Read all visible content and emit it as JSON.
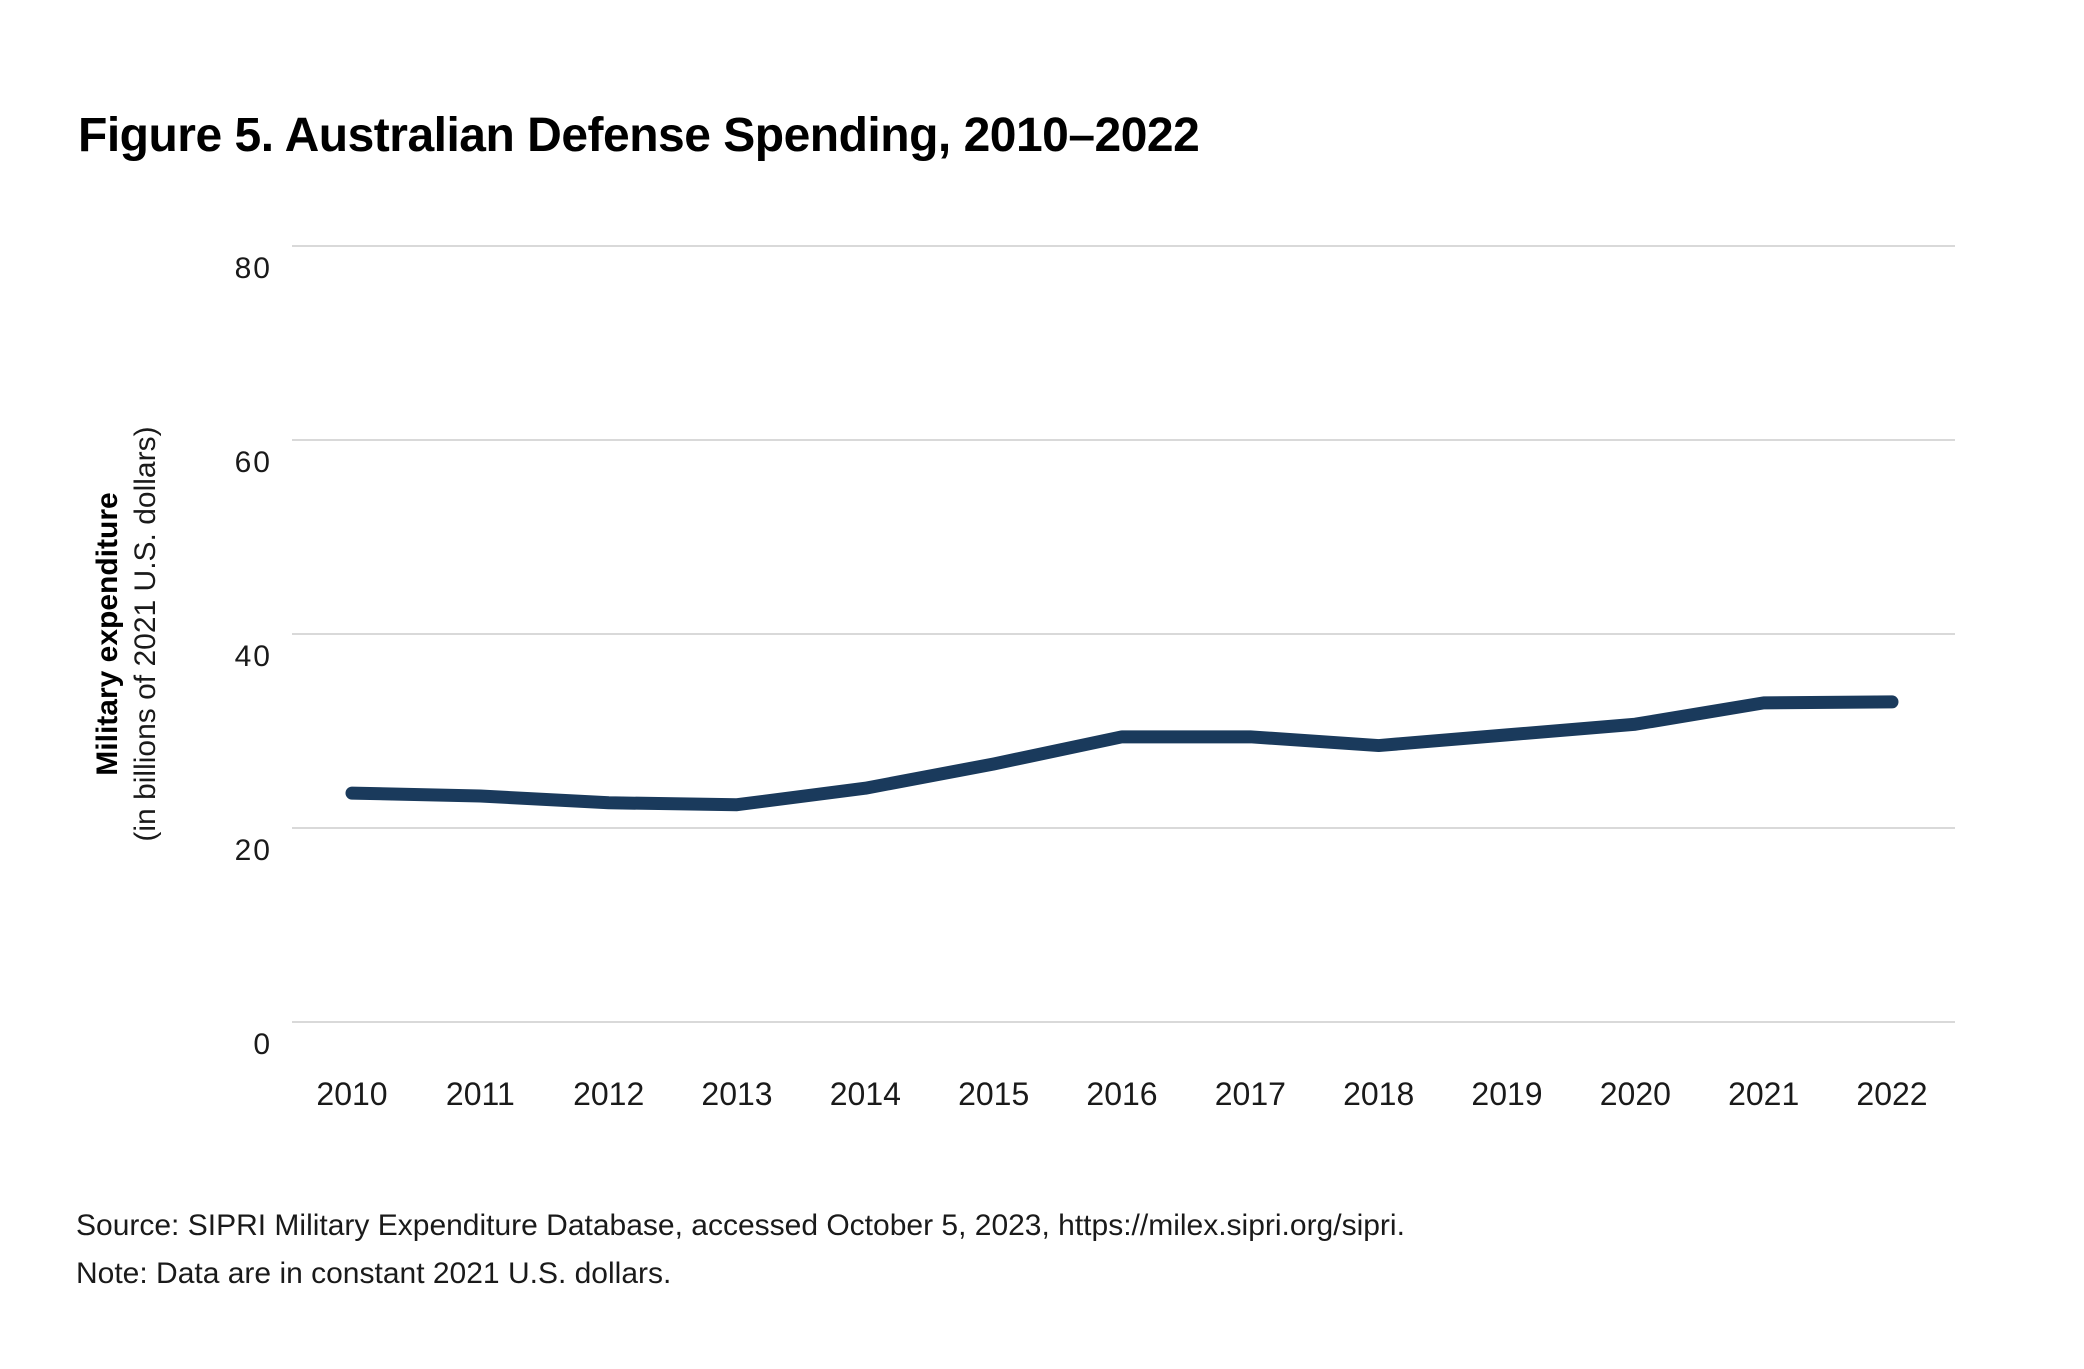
{
  "figure": {
    "title": "Figure 5. Australian Defense Spending, 2010–2022"
  },
  "footer": {
    "source": "Source: SIPRI Military Expenditure Database, accessed October 5, 2023, https://milex.sipri.org/sipri.",
    "note": "Note: Data are in constant 2021 U.S. dollars."
  },
  "chart_data": {
    "type": "line",
    "title": "Figure 5. Australian Defense Spending, 2010–2022",
    "x": [
      2010,
      2011,
      2012,
      2013,
      2014,
      2015,
      2016,
      2017,
      2018,
      2019,
      2020,
      2021,
      2022
    ],
    "xtick_labels": [
      "2010",
      "2011",
      "2012",
      "2013",
      "2014",
      "2015",
      "2016",
      "2017",
      "2018",
      "2019",
      "2020",
      "2021",
      "2022"
    ],
    "series": [
      {
        "name": "Australian military expenditure",
        "values": [
          23.6,
          23.3,
          22.6,
          22.4,
          24.1,
          26.6,
          29.4,
          29.4,
          28.5,
          29.6,
          30.7,
          32.9,
          33.0
        ],
        "color": "#1A3A5C"
      }
    ],
    "ylabel_line1": "Military expenditure",
    "ylabel_line2": "(in billions of 2021 U.S. dollars)",
    "yticks": [
      0,
      20,
      40,
      60,
      80
    ],
    "ylim": [
      0,
      80
    ],
    "grid": "horizontal",
    "gridline_color": "#D9D9D9",
    "legend_position": "none",
    "line_width": 13
  }
}
